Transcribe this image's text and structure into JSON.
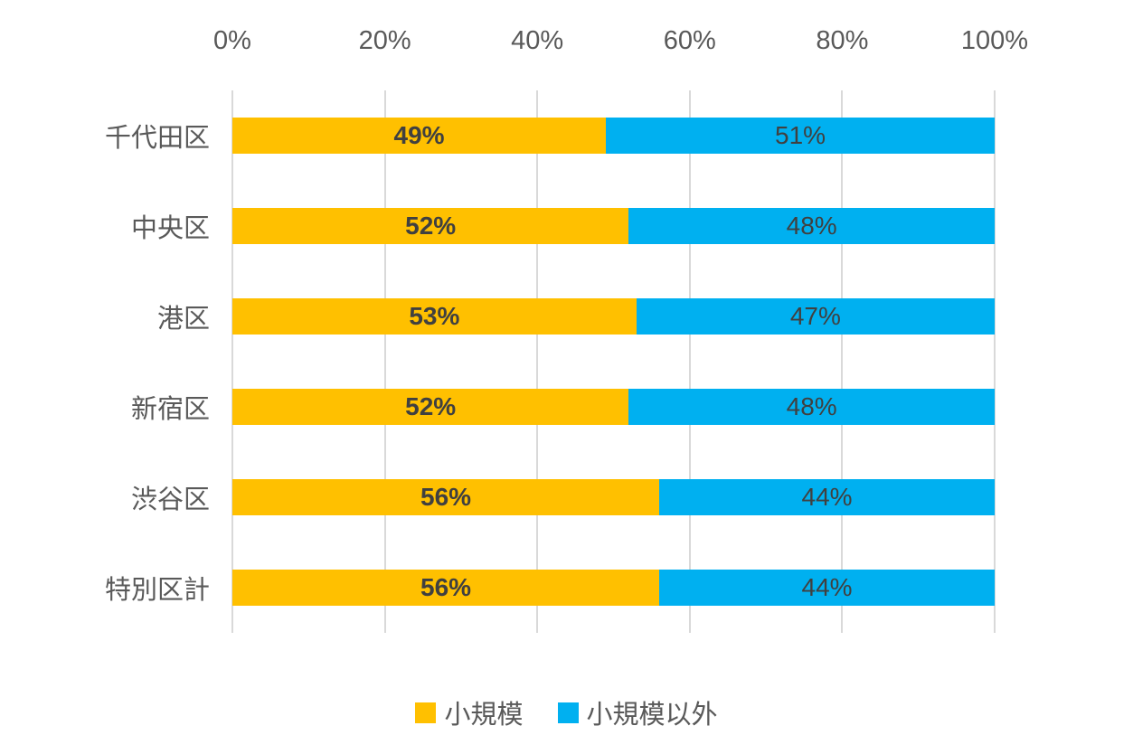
{
  "chart_data": {
    "type": "bar",
    "orientation": "horizontal",
    "stacked": true,
    "title": "",
    "xlabel": "",
    "ylabel": "",
    "categories": [
      "千代田区",
      "中央区",
      "港区",
      "新宿区",
      "渋谷区",
      "特別区計"
    ],
    "series": [
      {
        "name": "小規模",
        "color": "#FFC000",
        "values": [
          49,
          52,
          53,
          52,
          56,
          56
        ],
        "label_weight": "bold"
      },
      {
        "name": "小規模以外",
        "color": "#00B0F0",
        "values": [
          51,
          48,
          47,
          48,
          44,
          44
        ],
        "label_weight": "normal"
      }
    ],
    "x_ticks": [
      "0%",
      "20%",
      "40%",
      "60%",
      "80%",
      "100%"
    ],
    "xlim": [
      0,
      100
    ],
    "value_suffix": "%",
    "grid": true,
    "gridline_color": "#D9D9D9",
    "axis_text_color": "#595959",
    "value_label_color": "#404040",
    "legend_position": "bottom",
    "legend": [
      "小規模",
      "小規模以外"
    ]
  }
}
